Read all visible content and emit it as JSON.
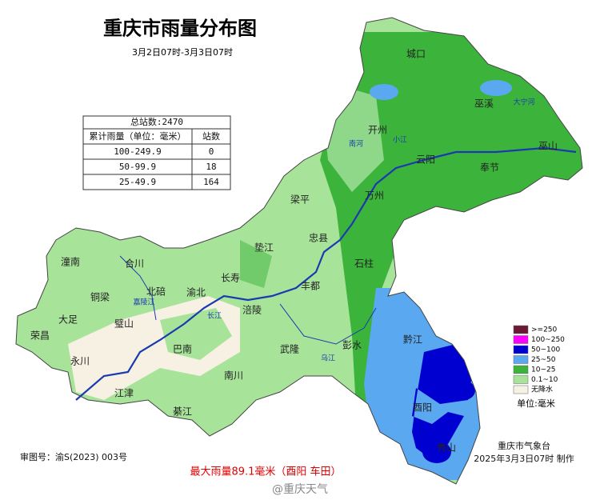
{
  "title": "重庆市雨量分布图",
  "subtitle": "3月2日07时-3月3日07时",
  "table": {
    "title": "总站数:2470",
    "header": [
      "累计雨量（单位：毫米）",
      "站数"
    ],
    "rows": [
      [
        "100-249.9",
        0
      ],
      [
        "50-99.9",
        18
      ],
      [
        "25-49.9",
        164
      ]
    ]
  },
  "legend": {
    "items": [
      {
        "label": ">=250",
        "color": "#6b1a35"
      },
      {
        "label": "100~250",
        "color": "#ff00ff"
      },
      {
        "label": "50~100",
        "color": "#0000d0"
      },
      {
        "label": "25~50",
        "color": "#5aa8f0"
      },
      {
        "label": "10~25",
        "color": "#3cb43c"
      },
      {
        "label": "0.1~10",
        "color": "#a8e39a"
      },
      {
        "label": "无降水",
        "color": "#f6f1e2"
      }
    ],
    "unit": "单位:毫米"
  },
  "places": [
    "城口",
    "巫溪",
    "巫山",
    "开州",
    "云阳",
    "奉节",
    "万州",
    "梁平",
    "忠县",
    "垫江",
    "石柱",
    "长寿",
    "丰都",
    "涪陵",
    "武隆",
    "彭水",
    "黔江",
    "酉阳",
    "秀山",
    "潼南",
    "合川",
    "铜梁",
    "北碚",
    "渝北",
    "大足",
    "璧山",
    "荣昌",
    "永川",
    "巴南",
    "南川",
    "江津",
    "綦江"
  ],
  "rivers": [
    "大宁河",
    "长江",
    "乌江",
    "嘉陵江",
    "南河",
    "小江"
  ],
  "footer": {
    "approval": "审图号：渝S(2023) 003号",
    "max": "最大雨量89.1毫米（酉阳 车田）",
    "agency": "重庆市气象台",
    "issued": "2025年3月3日07时 制作",
    "watermark": "@重庆天气"
  }
}
